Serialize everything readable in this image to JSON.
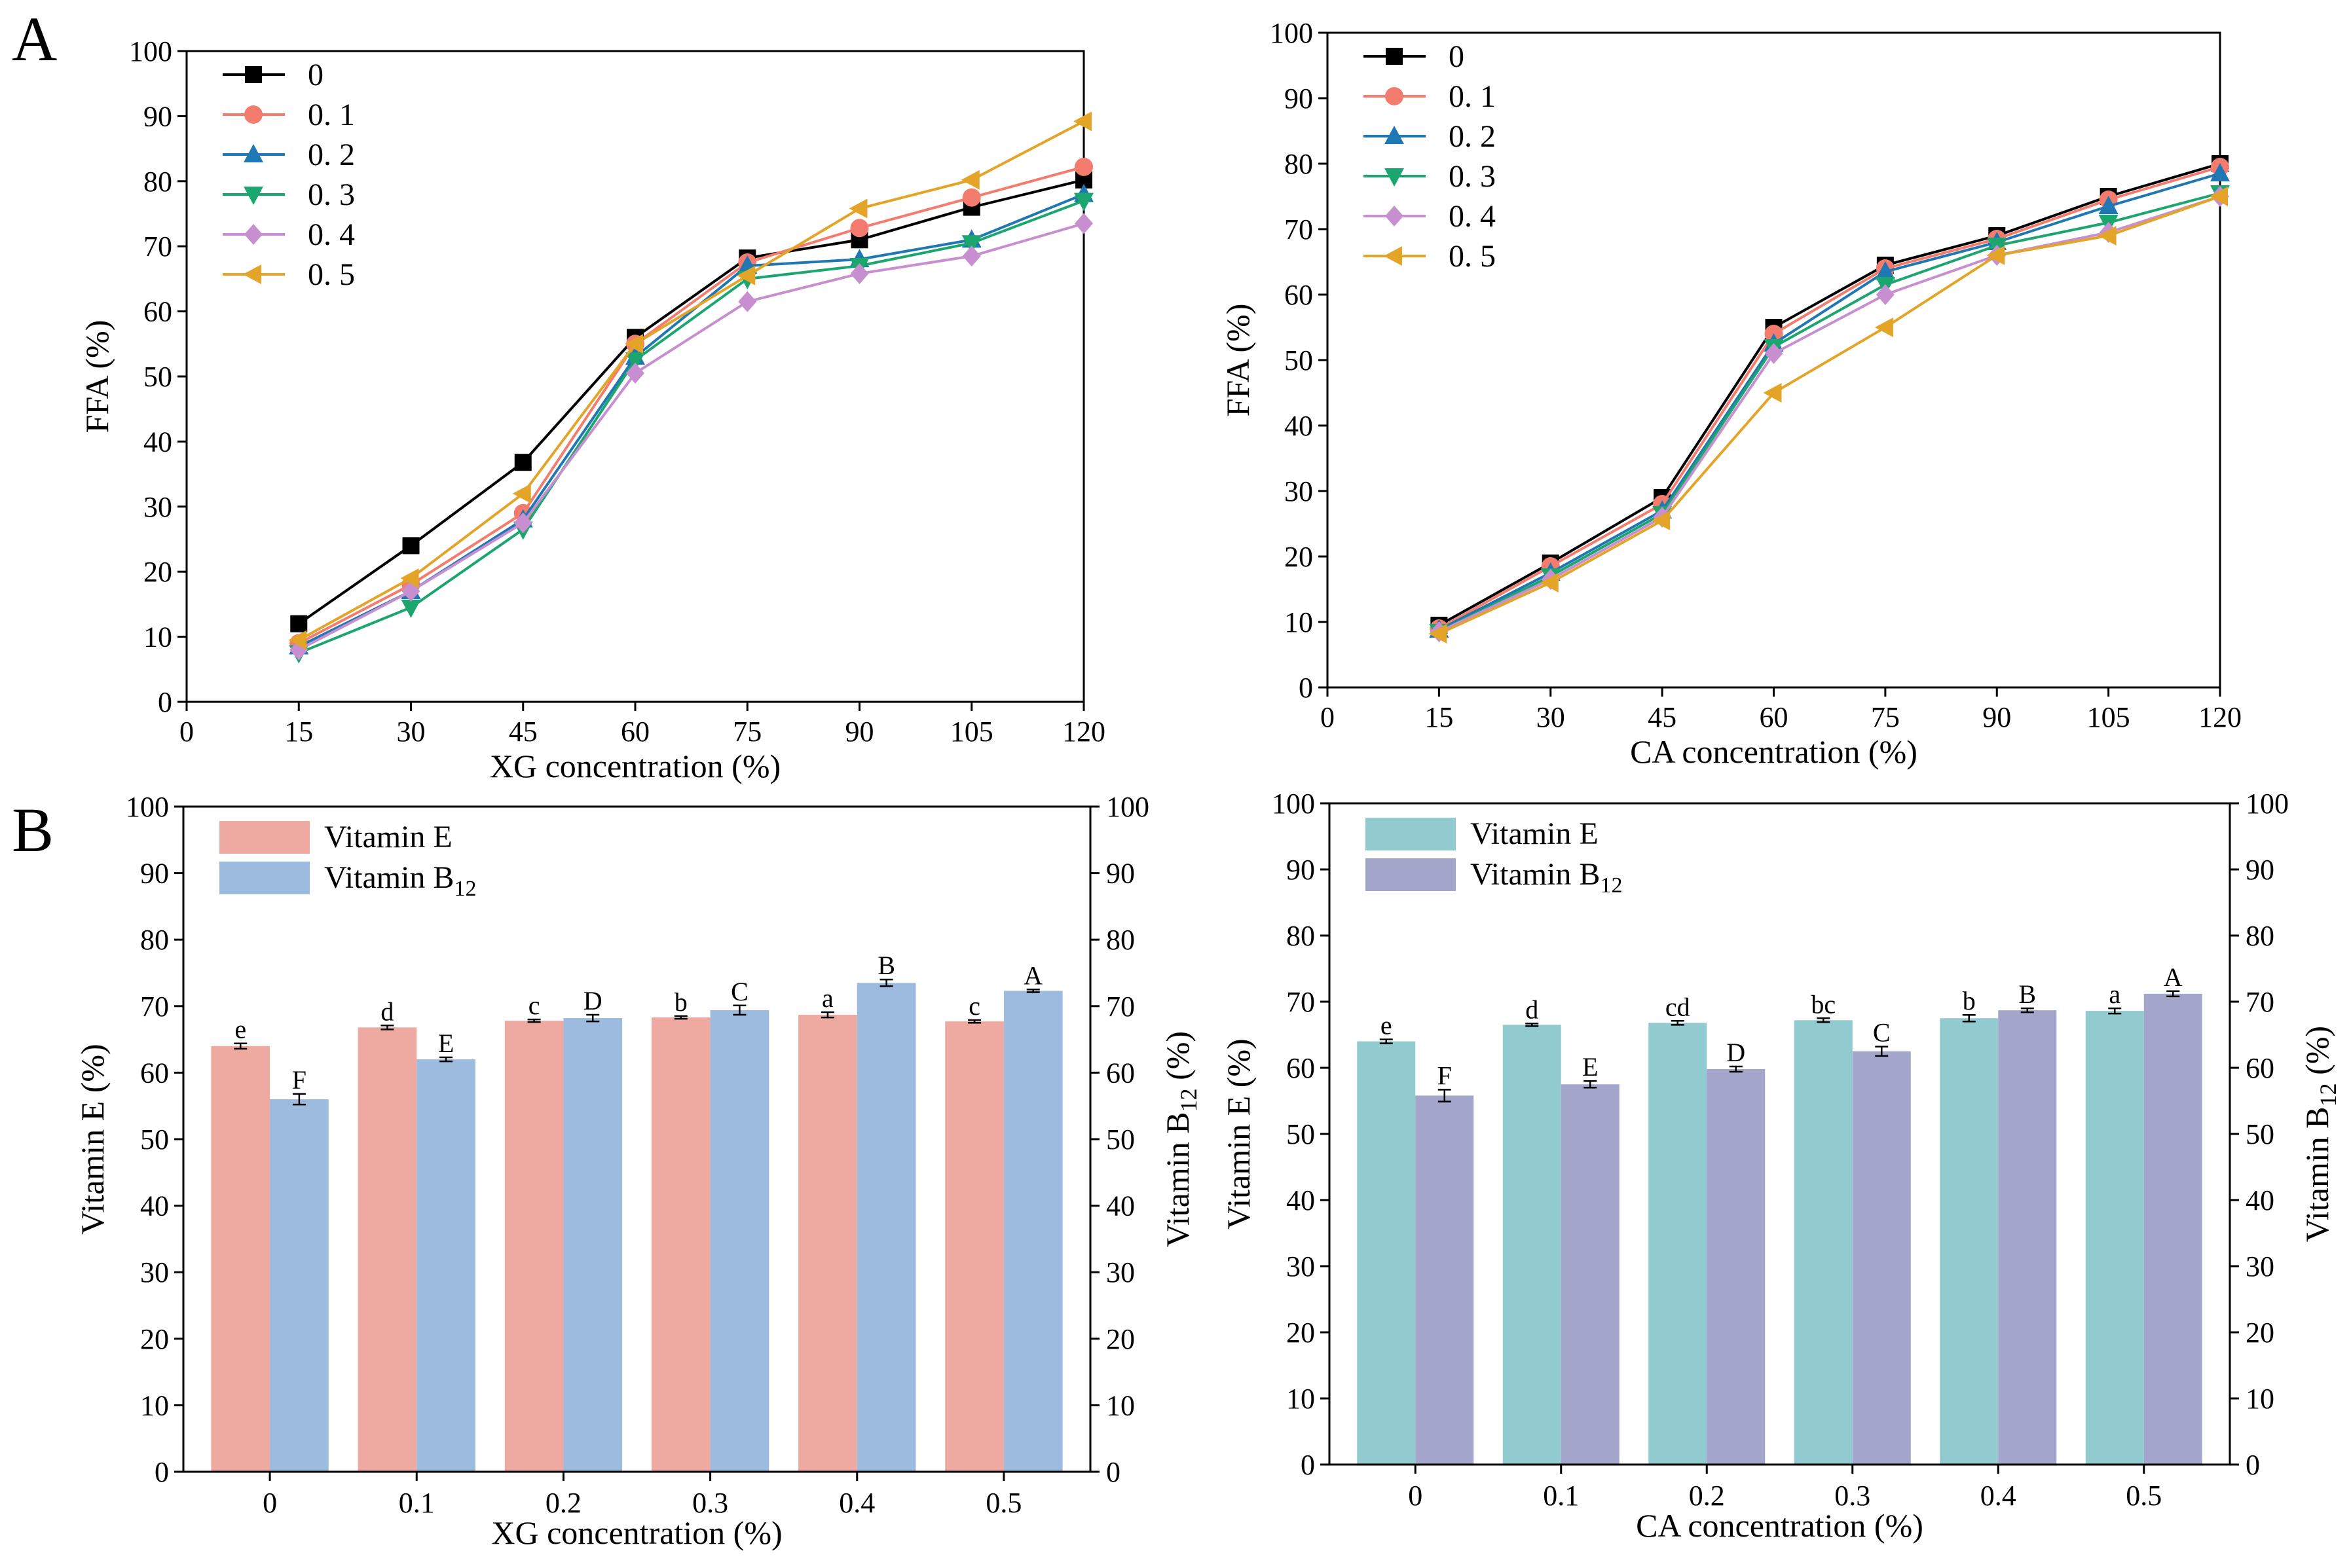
{
  "panel_labels": [
    "A",
    "B"
  ],
  "chart_data": [
    {
      "type": "line",
      "panel": "A",
      "xlabel": "XG concentration (%)",
      "ylabel": "FFA (%)",
      "x": [
        15,
        30,
        45,
        60,
        75,
        90,
        105,
        120
      ],
      "xlim": [
        0,
        120
      ],
      "xticks": [
        0,
        15,
        30,
        45,
        60,
        75,
        90,
        105,
        120
      ],
      "ylim": [
        0,
        100
      ],
      "yticks": [
        0,
        10,
        20,
        30,
        40,
        50,
        60,
        70,
        80,
        90,
        100
      ],
      "legend_position": "top-left",
      "series": [
        {
          "name": "0",
          "marker": "square",
          "color": "#000000",
          "values": [
            12.0,
            24.0,
            36.8,
            56.0,
            68.2,
            71.0,
            76.0,
            80.2
          ]
        },
        {
          "name": "0. 1",
          "marker": "circle",
          "color": "#f47c6e",
          "values": [
            9.0,
            18.0,
            29.0,
            55.0,
            67.5,
            72.8,
            77.5,
            82.2
          ]
        },
        {
          "name": "0. 2",
          "marker": "triangle-up",
          "color": "#1f77b4",
          "values": [
            8.5,
            17.0,
            28.0,
            53.0,
            67.0,
            68.0,
            71.0,
            78.0
          ]
        },
        {
          "name": "0. 3",
          "marker": "triangle-down",
          "color": "#1aa66e",
          "values": [
            7.5,
            14.5,
            26.5,
            52.5,
            65.0,
            67.0,
            70.5,
            77.0
          ]
        },
        {
          "name": "0. 4",
          "marker": "diamond",
          "color": "#c88fd0",
          "values": [
            8.0,
            17.0,
            27.5,
            50.5,
            61.5,
            65.8,
            68.5,
            73.5
          ]
        },
        {
          "name": "0. 5",
          "marker": "triangle-left",
          "color": "#e3a428",
          "values": [
            9.5,
            19.0,
            32.0,
            55.0,
            65.5,
            75.8,
            80.2,
            89.2
          ]
        }
      ]
    },
    {
      "type": "line",
      "panel": "A",
      "xlabel": "CA concentration (%)",
      "ylabel": "FFA (%)",
      "x": [
        15,
        30,
        45,
        60,
        75,
        90,
        105,
        120
      ],
      "xlim": [
        0,
        120
      ],
      "xticks": [
        0,
        15,
        30,
        45,
        60,
        75,
        90,
        105,
        120
      ],
      "ylim": [
        0,
        100
      ],
      "yticks": [
        0,
        10,
        20,
        30,
        40,
        50,
        60,
        70,
        80,
        90,
        100
      ],
      "legend_position": "top-left",
      "series": [
        {
          "name": "0",
          "marker": "square",
          "color": "#000000",
          "values": [
            9.5,
            19.0,
            29.0,
            55.0,
            64.5,
            69.0,
            75.0,
            80.0
          ]
        },
        {
          "name": "0. 1",
          "marker": "circle",
          "color": "#f47c6e",
          "values": [
            9.0,
            18.5,
            28.0,
            54.0,
            64.0,
            68.5,
            74.5,
            79.5
          ]
        },
        {
          "name": "0. 2",
          "marker": "triangle-up",
          "color": "#1f77b4",
          "values": [
            8.8,
            17.5,
            27.0,
            52.5,
            63.5,
            68.0,
            73.5,
            78.5
          ]
        },
        {
          "name": "0. 3",
          "marker": "triangle-down",
          "color": "#1aa66e",
          "values": [
            8.5,
            17.0,
            26.5,
            52.0,
            61.5,
            67.5,
            71.0,
            75.5
          ]
        },
        {
          "name": "0. 4",
          "marker": "diamond",
          "color": "#c88fd0",
          "values": [
            8.5,
            16.5,
            26.0,
            51.0,
            60.0,
            66.0,
            69.5,
            75.0
          ]
        },
        {
          "name": "0. 5",
          "marker": "triangle-left",
          "color": "#e3a428",
          "values": [
            8.2,
            16.0,
            25.5,
            45.0,
            55.0,
            66.0,
            69.0,
            75.0
          ]
        }
      ]
    },
    {
      "type": "bar",
      "panel": "B",
      "xlabel": "XG concentration (%)",
      "ylabel": "Vitamin E (%)",
      "ylabel_right_base": "Vitamin B",
      "ylabel_right_sub": "12",
      "ylabel_right_tail": " (%)",
      "categories": [
        "0",
        "0.1",
        "0.2",
        "0.3",
        "0.4",
        "0.5"
      ],
      "ylim": [
        0,
        100
      ],
      "yticks": [
        0,
        10,
        20,
        30,
        40,
        50,
        60,
        70,
        80,
        90,
        100
      ],
      "legend_position": "top-left",
      "series": [
        {
          "name": "Vitamin E",
          "color": "#eea9a1",
          "values": [
            64.0,
            66.8,
            67.8,
            68.3,
            68.7,
            67.7
          ],
          "errors": [
            0.4,
            0.3,
            0.2,
            0.2,
            0.4,
            0.2
          ],
          "letters": [
            "e",
            "d",
            "c",
            "b",
            "a",
            "c"
          ]
        },
        {
          "name": "Vitamin B12",
          "name_base": "Vitamin B",
          "name_sub": "12",
          "color": "#9dbbde",
          "values": [
            56.0,
            62.0,
            68.2,
            69.4,
            73.5,
            72.3
          ],
          "errors": [
            0.8,
            0.3,
            0.5,
            0.7,
            0.5,
            0.2
          ],
          "letters": [
            "F",
            "E",
            "D",
            "C",
            "B",
            "A"
          ]
        }
      ]
    },
    {
      "type": "bar",
      "panel": "B",
      "xlabel": "CA concentration (%)",
      "ylabel": "Vitamin E (%)",
      "ylabel_right_base": "Vitamin B",
      "ylabel_right_sub": "12",
      "ylabel_right_tail": " (%)",
      "categories": [
        "0",
        "0.1",
        "0.2",
        "0.3",
        "0.4",
        "0.5"
      ],
      "ylim": [
        0,
        100
      ],
      "yticks": [
        0,
        10,
        20,
        30,
        40,
        50,
        60,
        70,
        80,
        90,
        100
      ],
      "legend_position": "top-left",
      "series": [
        {
          "name": "Vitamin E",
          "color": "#91cbd0",
          "values": [
            64.0,
            66.5,
            66.8,
            67.2,
            67.5,
            68.6
          ],
          "errors": [
            0.3,
            0.2,
            0.3,
            0.3,
            0.5,
            0.4
          ],
          "letters": [
            "e",
            "d",
            "cd",
            "bc",
            "b",
            "a"
          ]
        },
        {
          "name": "Vitamin B12",
          "name_base": "Vitamin B",
          "name_sub": "12",
          "color": "#a4a5cb",
          "values": [
            55.8,
            57.5,
            59.8,
            62.5,
            68.7,
            71.2
          ],
          "errors": [
            0.9,
            0.5,
            0.4,
            0.7,
            0.3,
            0.4
          ],
          "letters": [
            "F",
            "E",
            "D",
            "C",
            "B",
            "A"
          ]
        }
      ]
    }
  ]
}
